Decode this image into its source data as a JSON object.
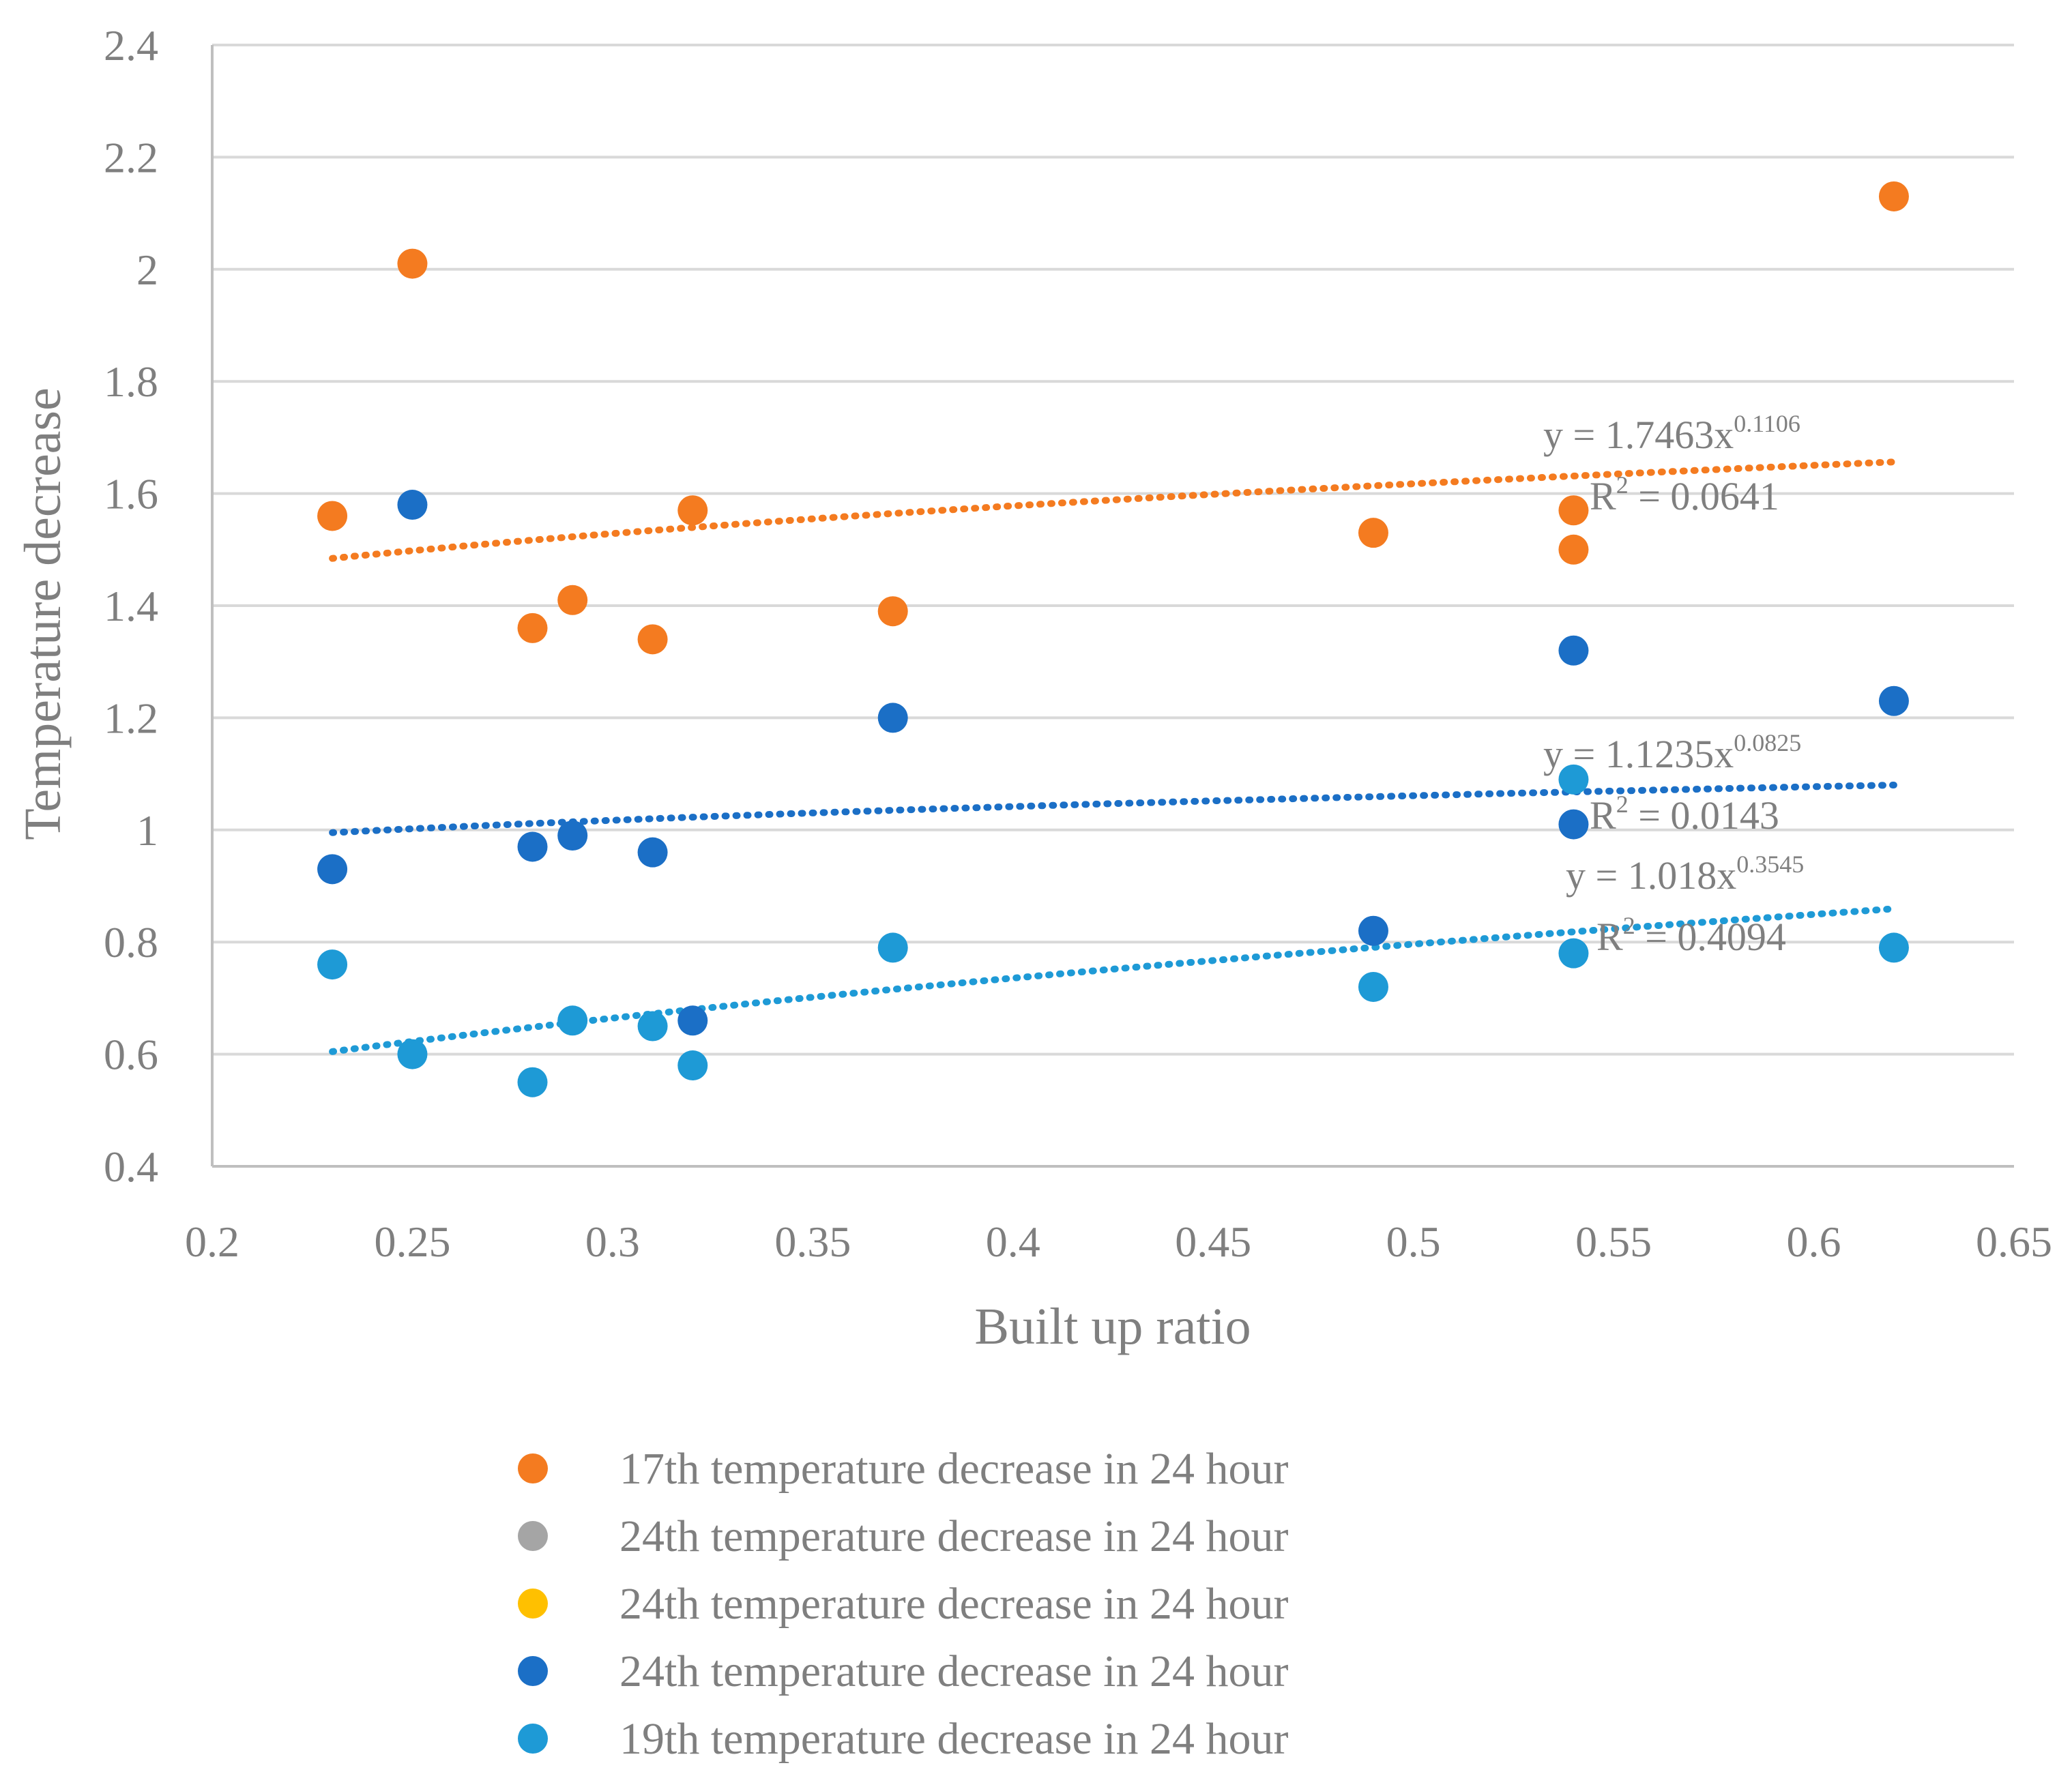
{
  "chart_data": {
    "type": "scatter",
    "title": "",
    "xlabel": "Built up ratio",
    "ylabel": "Temperature decrease",
    "xlim": [
      0.2,
      0.65
    ],
    "ylim": [
      0.4,
      2.4
    ],
    "xticks": [
      0.2,
      0.25,
      0.3,
      0.35,
      0.4,
      0.45,
      0.5,
      0.55,
      0.6,
      0.65
    ],
    "yticks": [
      0.4,
      0.6,
      0.8,
      1,
      1.2,
      1.4,
      1.6,
      1.8,
      2,
      2.2,
      2.4
    ],
    "xtick_labels": [
      "0.2",
      "0.25",
      "0.3",
      "0.35",
      "0.4",
      "0.45",
      "0.5",
      "0.55",
      "0.6",
      "0.65"
    ],
    "ytick_labels": [
      "0.4",
      "0.6",
      "0.8",
      "1",
      "1.2",
      "1.4",
      "1.6",
      "1.8",
      "2",
      "2.2",
      "2.4"
    ],
    "grid": "horizontal",
    "legend_position": "bottom",
    "series": [
      {
        "name": "17th temperature decrease in 24 hour",
        "color": "#F47B20",
        "x": [
          0.23,
          0.25,
          0.28,
          0.29,
          0.31,
          0.32,
          0.37,
          0.49,
          0.54,
          0.54,
          0.62
        ],
        "y": [
          1.56,
          2.01,
          1.36,
          1.41,
          1.34,
          1.57,
          1.39,
          1.53,
          1.57,
          1.5,
          2.13
        ],
        "trendline": {
          "type": "power",
          "a": 1.7463,
          "b": 0.1106,
          "x_range": [
            0.23,
            0.62
          ],
          "equation": "y = 1.7463x",
          "exponent": "0.1106",
          "r2_prefix": "R",
          "r2_sup": "2",
          "r2_value": " = 0.0641"
        }
      },
      {
        "name": "24th temperature decrease in 24 hour",
        "color": "#A5A5A5",
        "x": [],
        "y": []
      },
      {
        "name": "24th temperature decrease in 24 hour",
        "color": "#FFC000",
        "x": [],
        "y": []
      },
      {
        "name": "24th temperature decrease in 24 hour",
        "color": "#1B6FC6",
        "x": [
          0.23,
          0.25,
          0.28,
          0.29,
          0.31,
          0.32,
          0.37,
          0.49,
          0.54,
          0.54,
          0.62
        ],
        "y": [
          0.93,
          1.58,
          0.97,
          0.99,
          0.96,
          0.66,
          1.2,
          0.82,
          1.32,
          1.01,
          1.23
        ],
        "trendline": {
          "type": "power",
          "a": 1.1235,
          "b": 0.0825,
          "x_range": [
            0.23,
            0.62
          ],
          "equation": "y = 1.1235x",
          "exponent": "0.0825",
          "r2_prefix": "R",
          "r2_sup": "2",
          "r2_value": " = 0.0143"
        }
      },
      {
        "name": "19th temperature decrease in 24 hour",
        "color": "#1E9AD6",
        "x": [
          0.23,
          0.25,
          0.28,
          0.29,
          0.31,
          0.32,
          0.37,
          0.49,
          0.54,
          0.54,
          0.62
        ],
        "y": [
          0.76,
          0.6,
          0.55,
          0.66,
          0.65,
          0.58,
          0.79,
          0.72,
          1.09,
          0.78,
          0.79
        ],
        "trendline": {
          "type": "power",
          "a": 1.018,
          "b": 0.3545,
          "x_range": [
            0.23,
            0.62
          ],
          "equation": "y = 1.018x",
          "exponent": "0.3545",
          "r2_prefix": "R",
          "r2_sup": "2",
          "r2_value": " = 0.4094"
        }
      }
    ]
  }
}
